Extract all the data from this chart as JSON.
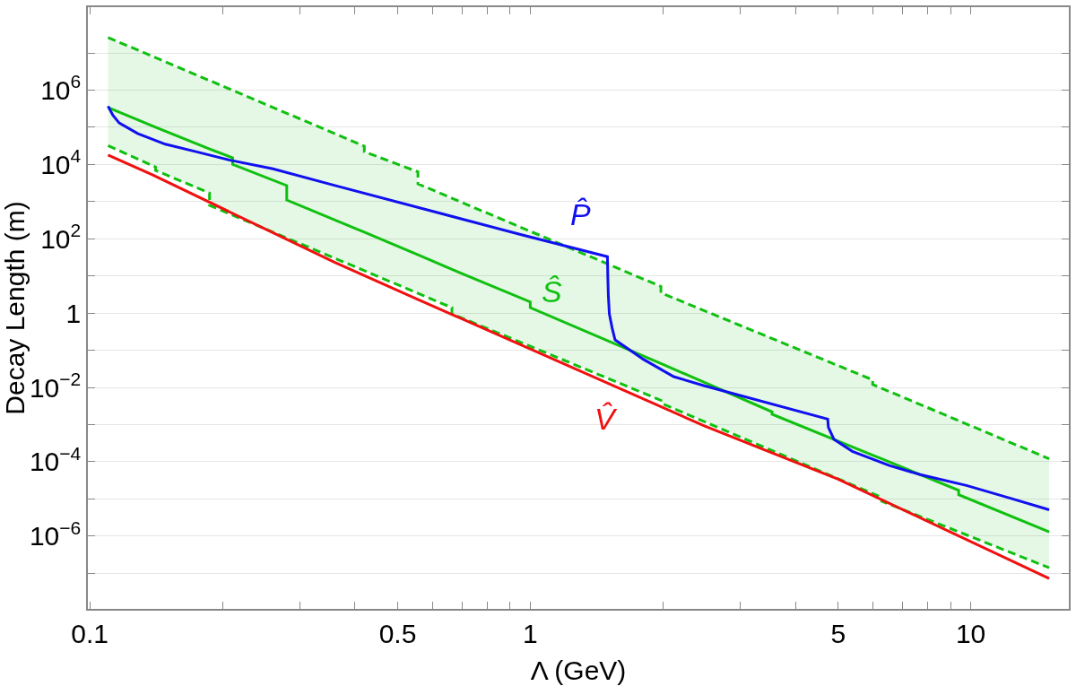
{
  "chart_data": {
    "type": "line",
    "xlabel": "Λ (GeV)",
    "ylabel": "Decay Length (m)",
    "log": "xy",
    "grid": "y",
    "legend": false,
    "xlim": [
      0.099,
      16.7
    ],
    "ylim": [
      1.1e-08,
      170000000.0
    ],
    "xticks": [
      0.1,
      {
        "value": 0.2,
        "label": null
      },
      {
        "value": 0.3,
        "label": null
      },
      {
        "value": 0.4,
        "label": null
      },
      0.5,
      {
        "value": 0.6,
        "label": null
      },
      {
        "value": 0.7,
        "label": null
      },
      {
        "value": 0.8,
        "label": null
      },
      {
        "value": 0.9,
        "label": null
      },
      1,
      {
        "value": 2,
        "label": null
      },
      {
        "value": 3,
        "label": null
      },
      {
        "value": 4,
        "label": null
      },
      5,
      {
        "value": 6,
        "label": null
      },
      {
        "value": 7,
        "label": null
      },
      {
        "value": 8,
        "label": null
      },
      {
        "value": 9,
        "label": null
      },
      10
    ],
    "yticks": [
      {
        "value": 1e-07,
        "label": null
      },
      {
        "value": 1e-06,
        "label": "10$^{−6}$"
      },
      {
        "value": 1e-05,
        "label": null
      },
      {
        "value": 0.0001,
        "label": "10$^{−4}$"
      },
      {
        "value": 0.001,
        "label": null
      },
      {
        "value": 0.01,
        "label": "10$^{−2}$"
      },
      {
        "value": 0.1,
        "label": null
      },
      1,
      {
        "value": 10.0,
        "label": null
      },
      {
        "value": 100.0,
        "label": "10$^{2}$"
      },
      {
        "value": 1000.0,
        "label": null
      },
      {
        "value": 10000.0,
        "label": "10$^{4}$"
      },
      {
        "value": 100000.0,
        "label": null
      },
      {
        "value": 1000000.0,
        "label": "10$^{6}$"
      },
      {
        "value": 10000000.0,
        "label": null
      }
    ],
    "series": [
      {
        "name": "P̂",
        "color": "#1010f0",
        "x": [
          0.11,
          0.1128,
          0.1166,
          0.1284,
          0.1484,
          0.1742,
          0.2082,
          0.2605,
          0.3603,
          0.946,
          1.497,
          1.5,
          1.504,
          1.512,
          1.534,
          1.558,
          1.773,
          1.802,
          2.117,
          2.486,
          4.736,
          4.75,
          4.892,
          5.387,
          6.536,
          7.678,
          9.78,
          12.45,
          15.07
        ],
        "values": [
          370000.0,
          210000.0,
          130000.0,
          68000.0,
          35000.0,
          22000.0,
          13000.0,
          7600.0,
          2700.0,
          132,
          33,
          9.1,
          3.0,
          0.95,
          0.4,
          0.19,
          0.066,
          0.058,
          0.0195,
          0.011,
          0.0014,
          0.00085,
          0.0004,
          0.00019,
          7.9e-05,
          4.5e-05,
          2.3e-05,
          1e-05,
          5.1e-06
        ]
      },
      {
        "name": "Ŝ",
        "color": "#10c010",
        "x": [
          0.11,
          0.141,
          0.141,
          0.187,
          0.187,
          0.211,
          0.211,
          0.28,
          0.28,
          0.42,
          0.42,
          0.556,
          0.556,
          0.664,
          0.664,
          1.0,
          1.0,
          1.98,
          1.98,
          3.54,
          3.54,
          5.99,
          5.99,
          6.28,
          6.28,
          9.39,
          9.39,
          15.07
        ],
        "values": [
          340000.0,
          100000.0,
          100000.0,
          26000.0,
          26000.0,
          15000.0,
          10000.0,
          2700.0,
          1100.0,
          150,
          150,
          37,
          37,
          15,
          15,
          2.0,
          1.4,
          0.044,
          0.044,
          0.0022,
          0.0019,
          0.00015,
          0.00015,
          0.00012,
          0.00012,
          1.7e-05,
          1.3e-05,
          1.3e-06
        ],
        "upper": [
          26000000.0,
          7200000.0,
          7200000.0,
          1800000.0,
          1800000.0,
          980000.0,
          980000.0,
          230000.0,
          230000.0,
          31000.0,
          22000.0,
          6300.0,
          3000.0,
          1200.0,
          1200.0,
          160,
          160,
          5.2,
          3.5,
          0.21,
          0.21,
          0.016,
          0.012,
          0.0095,
          0.0095,
          0.0013,
          0.0013,
          0.00012
        ],
        "lower": [
          32000.0,
          8500.0,
          6900.0,
          1700.0,
          790,
          440,
          440,
          100,
          100,
          14,
          14,
          3.4,
          3.4,
          1.4,
          0.95,
          0.13,
          0.13,
          0.0045,
          0.0038,
          0.0002,
          0.0002,
          1.4e-05,
          1.4e-05,
          1.1e-05,
          8.7e-06,
          1.3e-06,
          1.3e-06,
          1.4e-07
        ]
      },
      {
        "name": "V̂",
        "color": "#f01010",
        "x": [
          0.11,
          0.139,
          0.36,
          0.548,
          2.49,
          5.0,
          15.07
        ],
        "values": [
          18000.0,
          5200.0,
          23,
          2.5,
          0.00091,
          3.4e-05,
          7.2e-08
        ]
      },
      {
        "color": "#10c010",
        "line_style": "dashed",
        "x": [
          0.11,
          0.42,
          0.42,
          0.556,
          0.556,
          1.98,
          1.98,
          5.99,
          5.99,
          15.07
        ],
        "values": [
          26000000.0,
          31000.0,
          22000.0,
          6300.0,
          3000.0,
          5.2,
          3.5,
          0.016,
          0.012,
          0.00012
        ]
      },
      {
        "color": "#10c010",
        "line_style": "dashed",
        "x": [
          0.11,
          0.141,
          0.141,
          0.187,
          0.187,
          0.664,
          0.664,
          1.98,
          1.98,
          6.28,
          6.28,
          15.07
        ],
        "values": [
          32000.0,
          8500.0,
          6900.0,
          1700.0,
          790,
          1.4,
          0.95,
          0.0045,
          0.0038,
          1.1e-05,
          8.7e-06,
          1.4e-07
        ]
      }
    ]
  }
}
